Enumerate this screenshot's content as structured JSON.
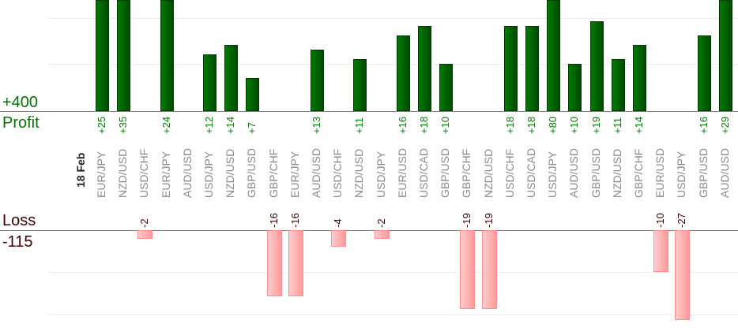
{
  "labels": {
    "profit_max": "+400",
    "profit": "Profit",
    "loss": "Loss",
    "loss_max": "-115",
    "date": "18 Feb"
  },
  "colors": {
    "profit": "#006400",
    "loss": "#ff9999"
  },
  "chart_data": {
    "type": "bar",
    "title": "",
    "categories": [
      "EUR/JPY",
      "NZD/USD",
      "USD/CHF",
      "EUR/JPY",
      "AUD/USD",
      "USD/JPY",
      "NZD/USD",
      "GBP/USD",
      "GBP/CHF",
      "EUR/JPY",
      "AUD/USD",
      "USD/CHF",
      "NZD/USD",
      "USD/JPY",
      "EUR/USD",
      "USD/CAD",
      "GBP/USD",
      "GBP/CHF",
      "NZD/USD",
      "USD/CHF",
      "USD/CAD",
      "USD/JPY",
      "AUD/USD",
      "GBP/USD",
      "NZD/USD",
      "GBP/CHF",
      "EUR/USD",
      "USD/JPY",
      "GBP/USD",
      "AUD/USD"
    ],
    "values": [
      25,
      35,
      -2,
      24,
      null,
      12,
      14,
      7,
      -16,
      -16,
      13,
      -4,
      11,
      -2,
      16,
      18,
      10,
      -19,
      -19,
      18,
      18,
      80,
      10,
      19,
      11,
      14,
      -10,
      -27,
      16,
      29
    ],
    "value_labels": [
      "+25",
      "+35",
      "-2",
      "+24",
      "",
      "+12",
      "+14",
      "+7",
      "-16",
      "-16",
      "+13",
      "-4",
      "+11",
      "-2",
      "+16",
      "+18",
      "+10",
      "-19",
      "-19",
      "+18",
      "+18",
      "+80",
      "+10",
      "+19",
      "+11",
      "+14",
      "-10",
      "-27",
      "+16",
      "+29"
    ],
    "profit_label": "Profit",
    "loss_label": "Loss",
    "profit_total": "+400",
    "loss_total": "-115"
  }
}
